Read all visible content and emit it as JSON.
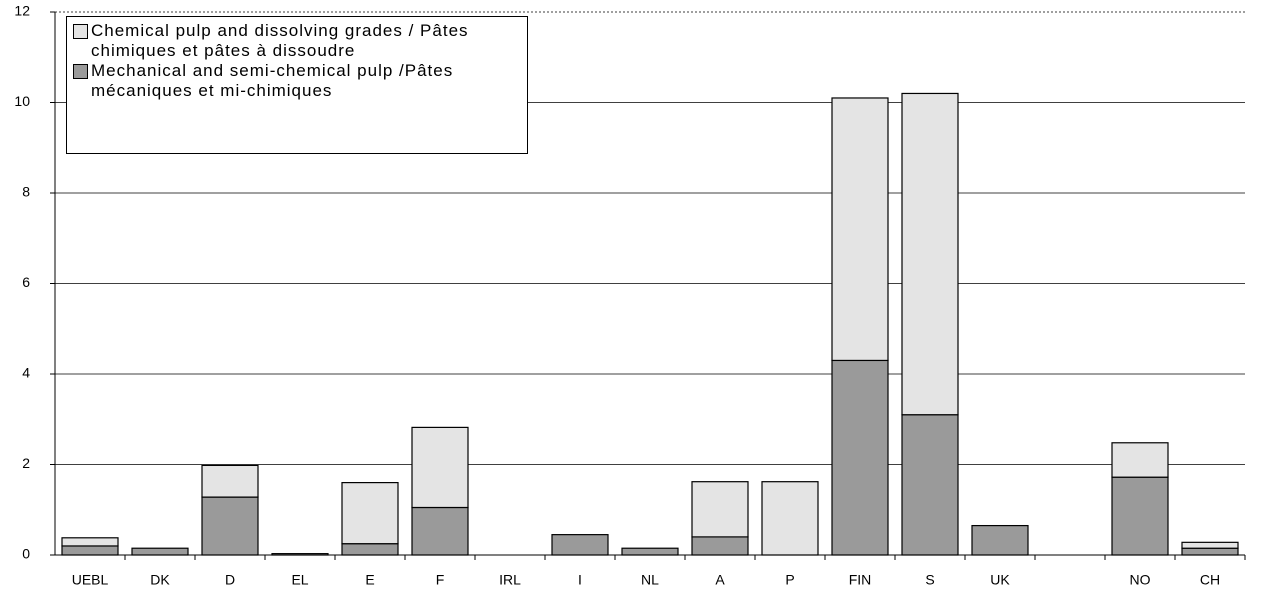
{
  "chart_data": {
    "type": "stacked_bar",
    "categories": [
      "UEBL",
      "DK",
      "D",
      "EL",
      "E",
      "F",
      "IRL",
      "I",
      "NL",
      "A",
      "P",
      "FIN",
      "S",
      "UK",
      null,
      "NO",
      "CH"
    ],
    "series": [
      {
        "name": "Chemical pulp and dissolving grades / Pâtes chimiques et pâtes à dissoudre",
        "color": "#e4e4e4",
        "values": [
          0.18,
          0,
          0.7,
          0.03,
          1.35,
          1.77,
          0,
          0,
          0,
          1.22,
          1.62,
          5.8,
          7.1,
          0,
          null,
          0.76,
          0.13
        ]
      },
      {
        "name": "Mechanical and semi-chemical pulp /Pâtes mécaniques et mi-chimiques",
        "color": "#9a9a9a",
        "values": [
          0.2,
          0.15,
          1.28,
          0,
          0.25,
          1.05,
          0,
          0.45,
          0.15,
          0.4,
          0,
          4.3,
          3.1,
          0.65,
          null,
          1.72,
          0.15
        ]
      }
    ],
    "stack_order": [
      1,
      0
    ],
    "ylim": [
      0,
      12
    ],
    "yticks": [
      0,
      2,
      4,
      6,
      8,
      10,
      12
    ],
    "grid": true,
    "legend": "upper left"
  }
}
